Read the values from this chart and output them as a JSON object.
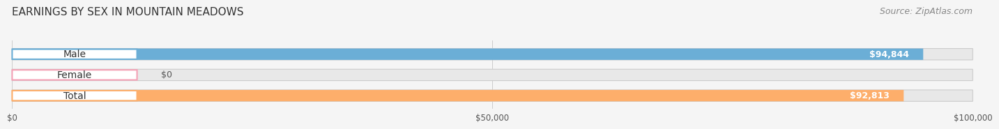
{
  "title": "EARNINGS BY SEX IN MOUNTAIN MEADOWS",
  "source": "Source: ZipAtlas.com",
  "categories": [
    "Male",
    "Female",
    "Total"
  ],
  "values": [
    94844,
    0,
    92813
  ],
  "bar_colors": [
    "#6baed6",
    "#f4a0b5",
    "#fdae6b"
  ],
  "value_labels": [
    "$94,844",
    "$0",
    "$92,813"
  ],
  "xlim": [
    0,
    100000
  ],
  "xticks": [
    0,
    50000,
    100000
  ],
  "xtick_labels": [
    "$0",
    "$50,000",
    "$100,000"
  ],
  "bar_height": 0.55,
  "background_color": "#f5f5f5",
  "bar_bg_color": "#e8e8e8",
  "title_fontsize": 11,
  "source_fontsize": 9,
  "label_fontsize": 10,
  "value_fontsize": 9
}
